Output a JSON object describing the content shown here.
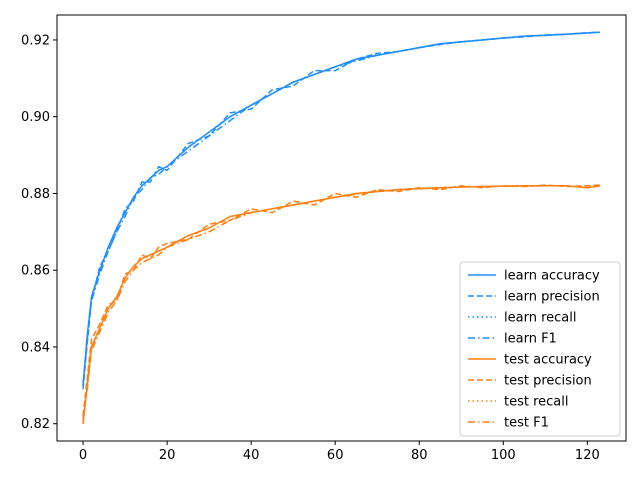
{
  "chart_data": {
    "type": "line",
    "title": "",
    "xlabel": "",
    "ylabel": "",
    "xlim": [
      -6.2,
      129.2
    ],
    "ylim": [
      0.8155,
      0.9265
    ],
    "xticks": [
      0,
      20,
      40,
      60,
      80,
      100,
      120
    ],
    "xtick_labels": [
      "0",
      "20",
      "40",
      "60",
      "80",
      "100",
      "120"
    ],
    "yticks": [
      0.82,
      0.84,
      0.86,
      0.88,
      0.9,
      0.92
    ],
    "ytick_labels": [
      "0.82",
      "0.84",
      "0.86",
      "0.88",
      "0.90",
      "0.92"
    ],
    "grid": false,
    "legend_position": "lower-right",
    "x_points": [
      0,
      1,
      2,
      4,
      6,
      8,
      10,
      12,
      14,
      16,
      18,
      20,
      25,
      30,
      35,
      40,
      45,
      50,
      55,
      60,
      65,
      70,
      75,
      80,
      85,
      90,
      95,
      100,
      105,
      110,
      115,
      120,
      123
    ],
    "series": [
      {
        "name": "learn accuracy",
        "color": "#1f8fff",
        "dash": "solid",
        "values": [
          0.83,
          0.843,
          0.853,
          0.86,
          0.866,
          0.871,
          0.875,
          0.879,
          0.882,
          0.884,
          0.886,
          0.887,
          0.892,
          0.896,
          0.9,
          0.903,
          0.906,
          0.909,
          0.911,
          0.913,
          0.915,
          0.916,
          0.917,
          0.918,
          0.919,
          0.9195,
          0.92,
          0.9205,
          0.921,
          0.9212,
          0.9215,
          0.9218,
          0.922
        ]
      },
      {
        "name": "learn precision",
        "color": "#1f8fff",
        "dash": "dashed",
        "values": [
          0.829,
          0.841,
          0.852,
          0.861,
          0.865,
          0.87,
          0.876,
          0.878,
          0.883,
          0.883,
          0.887,
          0.886,
          0.893,
          0.895,
          0.901,
          0.902,
          0.907,
          0.908,
          0.912,
          0.912,
          0.915,
          0.9165,
          0.917,
          0.918,
          0.9188,
          0.9195,
          0.92,
          0.9205,
          0.9208,
          0.9213,
          0.9215,
          0.9219,
          0.922
        ]
      },
      {
        "name": "learn recall",
        "color": "#1f8fff",
        "dash": "dotted",
        "values": [
          0.83,
          0.843,
          0.853,
          0.86,
          0.866,
          0.871,
          0.875,
          0.879,
          0.882,
          0.884,
          0.886,
          0.887,
          0.892,
          0.896,
          0.9,
          0.903,
          0.906,
          0.909,
          0.911,
          0.913,
          0.915,
          0.916,
          0.917,
          0.918,
          0.919,
          0.9195,
          0.92,
          0.9205,
          0.921,
          0.9212,
          0.9215,
          0.9218,
          0.922
        ]
      },
      {
        "name": "learn F1",
        "color": "#1f8fff",
        "dash": "dashdot",
        "values": [
          0.83,
          0.842,
          0.852,
          0.859,
          0.865,
          0.87,
          0.874,
          0.879,
          0.881,
          0.884,
          0.885,
          0.887,
          0.891,
          0.895,
          0.899,
          0.903,
          0.906,
          0.909,
          0.911,
          0.913,
          0.9145,
          0.916,
          0.917,
          0.918,
          0.919,
          0.9195,
          0.92,
          0.9205,
          0.921,
          0.9212,
          0.9215,
          0.9218,
          0.922
        ]
      },
      {
        "name": "test accuracy",
        "color": "#ff7f0e",
        "dash": "solid",
        "values": [
          0.82,
          0.83,
          0.84,
          0.845,
          0.85,
          0.853,
          0.858,
          0.861,
          0.863,
          0.864,
          0.865,
          0.866,
          0.869,
          0.871,
          0.874,
          0.875,
          0.876,
          0.877,
          0.878,
          0.879,
          0.88,
          0.8805,
          0.881,
          0.8813,
          0.8815,
          0.8817,
          0.8818,
          0.8819,
          0.882,
          0.882,
          0.882,
          0.8815,
          0.882
        ]
      },
      {
        "name": "test precision",
        "color": "#ff7f0e",
        "dash": "dashed",
        "values": [
          0.822,
          0.832,
          0.842,
          0.846,
          0.851,
          0.852,
          0.859,
          0.86,
          0.864,
          0.863,
          0.866,
          0.867,
          0.868,
          0.872,
          0.873,
          0.876,
          0.875,
          0.878,
          0.877,
          0.88,
          0.879,
          0.881,
          0.8805,
          0.8815,
          0.881,
          0.882,
          0.8815,
          0.882,
          0.8818,
          0.8822,
          0.8818,
          0.882,
          0.8822
        ]
      },
      {
        "name": "test recall",
        "color": "#ff7f0e",
        "dash": "dotted",
        "values": [
          0.82,
          0.83,
          0.84,
          0.845,
          0.85,
          0.853,
          0.858,
          0.861,
          0.863,
          0.864,
          0.865,
          0.866,
          0.869,
          0.871,
          0.874,
          0.875,
          0.876,
          0.877,
          0.878,
          0.879,
          0.88,
          0.8805,
          0.881,
          0.8813,
          0.8815,
          0.8817,
          0.8818,
          0.8819,
          0.882,
          0.882,
          0.882,
          0.8815,
          0.882
        ]
      },
      {
        "name": "test F1",
        "color": "#ff7f0e",
        "dash": "dashdot",
        "values": [
          0.821,
          0.829,
          0.839,
          0.844,
          0.849,
          0.852,
          0.857,
          0.86,
          0.862,
          0.863,
          0.864,
          0.866,
          0.868,
          0.87,
          0.873,
          0.875,
          0.876,
          0.877,
          0.878,
          0.879,
          0.8798,
          0.8805,
          0.881,
          0.8812,
          0.8815,
          0.8817,
          0.8818,
          0.8819,
          0.8819,
          0.882,
          0.882,
          0.8815,
          0.882
        ]
      }
    ]
  }
}
